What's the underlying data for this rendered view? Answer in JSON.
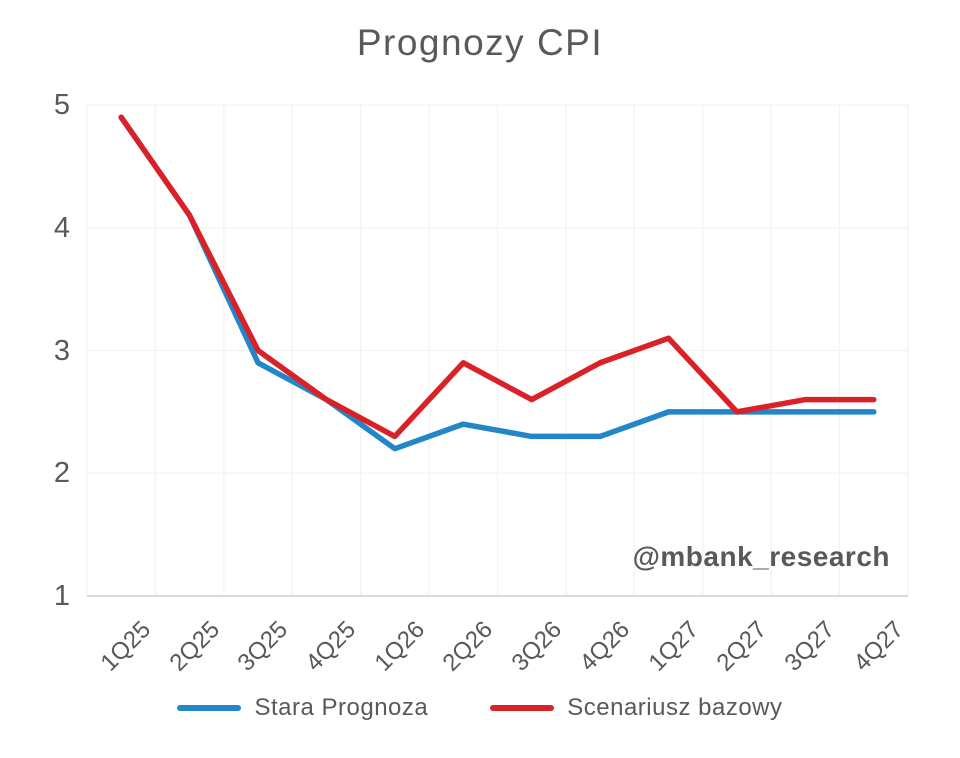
{
  "colors": {
    "blue": "#2386c8",
    "red": "#db2128",
    "text": "#595959",
    "grid": "#f3f3f3",
    "axis_line": "#d9d9d9",
    "background": "#ffffff"
  },
  "chart_data": {
    "type": "line",
    "title": "Prognozy CPI",
    "categories": [
      "1Q25",
      "2Q25",
      "3Q25",
      "4Q25",
      "1Q26",
      "2Q26",
      "3Q26",
      "4Q26",
      "1Q27",
      "2Q27",
      "3Q27",
      "4Q27"
    ],
    "series": [
      {
        "name": "Stara Prognoza",
        "color": "#2386c8",
        "values": [
          4.9,
          4.1,
          2.9,
          2.6,
          2.2,
          2.4,
          2.3,
          2.3,
          2.5,
          2.5,
          2.5,
          2.5
        ]
      },
      {
        "name": "Scenariusz bazowy",
        "color": "#db2128",
        "values": [
          4.9,
          4.1,
          3.0,
          2.6,
          2.3,
          2.9,
          2.6,
          2.9,
          3.1,
          2.5,
          2.6,
          2.6
        ]
      }
    ],
    "xlabel": "",
    "ylabel": "",
    "yticks": [
      5,
      4,
      3,
      2,
      1
    ],
    "ylim": [
      1,
      5
    ],
    "grid": true,
    "legend_position": "bottom",
    "annotation": "@mbank_research"
  },
  "legend": {
    "items": [
      {
        "label": "Stara Prognoza",
        "color": "#2386c8"
      },
      {
        "label": "Scenariusz bazowy",
        "color": "#db2128"
      }
    ]
  }
}
